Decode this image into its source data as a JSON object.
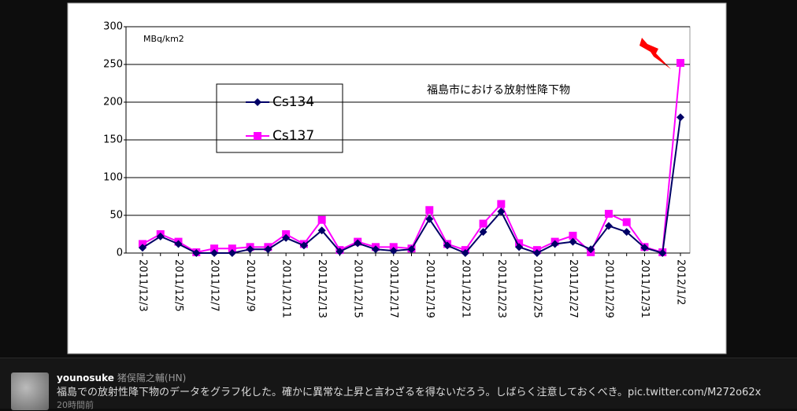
{
  "chart_data": {
    "type": "line",
    "title": "福島市における放射性降下物",
    "unit_label": "MBq/km2",
    "categories": [
      "2011/12/3",
      null,
      "2011/12/5",
      null,
      "2011/12/7",
      null,
      "2011/12/9",
      null,
      "2011/12/11",
      null,
      "2011/12/13",
      null,
      "2011/12/15",
      null,
      "2011/12/17",
      null,
      "2011/12/19",
      null,
      "2011/12/21",
      null,
      "2011/12/23",
      null,
      "2011/12/25",
      null,
      "2011/12/27",
      null,
      "2011/12/29",
      null,
      "2011/12/31",
      null,
      "2012/1/2"
    ],
    "series": [
      {
        "name": "Cs134",
        "color": "#000066",
        "marker": "diamond",
        "values": [
          7,
          22,
          12,
          0,
          0,
          0,
          5,
          5,
          20,
          10,
          30,
          2,
          13,
          5,
          3,
          5,
          45,
          10,
          0,
          28,
          55,
          8,
          0,
          12,
          15,
          5,
          36,
          28,
          7,
          0,
          180
        ]
      },
      {
        "name": "Cs137",
        "color": "#ff00ff",
        "marker": "square",
        "values": [
          12,
          25,
          15,
          1,
          6,
          6,
          8,
          8,
          25,
          12,
          44,
          4,
          15,
          8,
          8,
          6,
          57,
          12,
          4,
          39,
          65,
          13,
          4,
          15,
          23,
          1,
          52,
          41,
          8,
          1,
          252
        ]
      }
    ],
    "ylim": [
      0,
      300
    ],
    "yticks": [
      0,
      50,
      100,
      150,
      200,
      250,
      300
    ],
    "grid": true
  },
  "tweet": {
    "username": "younosuke",
    "display_name": "猪俣陽之輔(HN)",
    "text": "福島での放射性降下物のデータをグラフ化した。確かに異常な上昇と言わざるを得ないだろう。しばらく注意しておくべき。",
    "link": "pic.twitter.com/M272o62x",
    "time": "20時間前"
  }
}
